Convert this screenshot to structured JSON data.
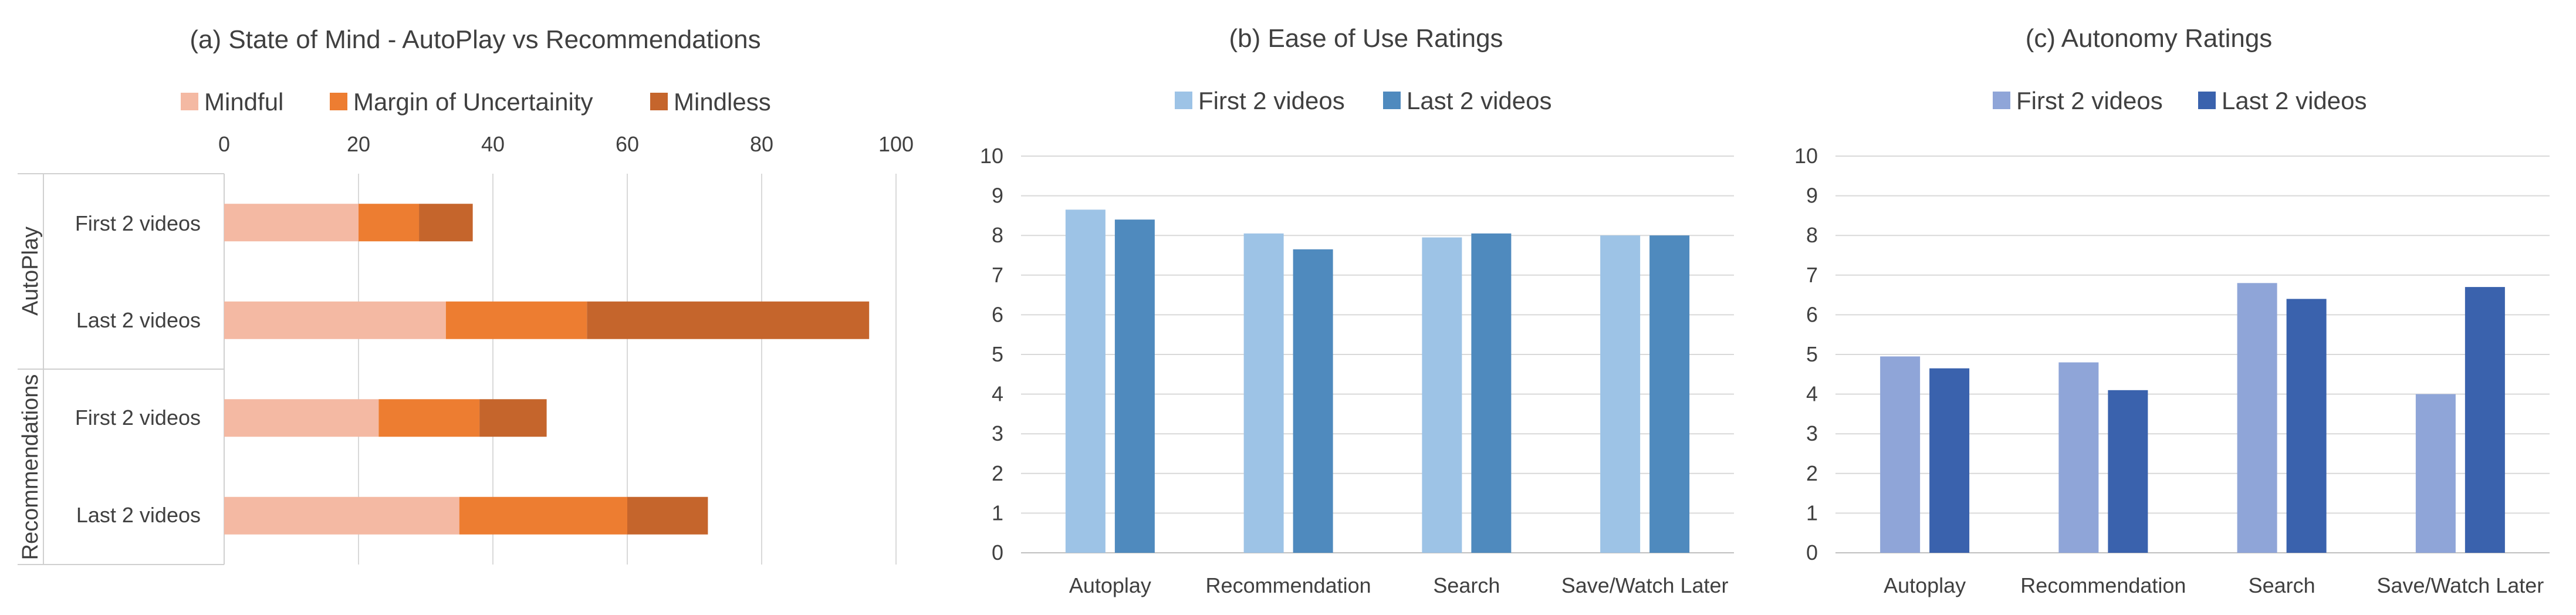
{
  "chart_data": [
    {
      "type": "bar",
      "orientation": "horizontal",
      "stacked": true,
      "title": "(a) State of Mind - AutoPlay vs Recommendations",
      "groups": [
        {
          "label": "AutoPlay",
          "categories": [
            "First 2 videos",
            "Last 2 videos"
          ]
        },
        {
          "label": "Recommendations",
          "categories": [
            "First 2 videos",
            "Last 2 videos"
          ]
        }
      ],
      "series": [
        {
          "name": "Mindful",
          "color": "#F4B9A3",
          "values": [
            20,
            33,
            23,
            35
          ]
        },
        {
          "name": "Margin of Uncertainity",
          "color": "#ED7D31",
          "values": [
            9,
            21,
            15,
            25
          ]
        },
        {
          "name": "Mindless",
          "color": "#C5652C",
          "values": [
            8,
            42,
            10,
            12
          ]
        }
      ],
      "xlim": [
        0,
        100
      ],
      "xticks": [
        "0",
        "20",
        "40",
        "60",
        "80",
        "100"
      ],
      "xaxis_position": "top",
      "grid": true,
      "legend": "top"
    },
    {
      "type": "bar",
      "title": "(b) Ease of Use Ratings",
      "categories": [
        "Autoplay",
        "Recommendation",
        "Search",
        "Save/Watch Later"
      ],
      "series": [
        {
          "name": "First 2 videos",
          "color": "#9DC3E6",
          "values": [
            8.65,
            8.05,
            7.95,
            8.0
          ]
        },
        {
          "name": "Last 2 videos",
          "color": "#4F8ABE",
          "values": [
            8.4,
            7.65,
            8.05,
            8.0
          ]
        }
      ],
      "ylim": [
        0,
        10
      ],
      "yticks": [
        "0",
        "1",
        "2",
        "3",
        "4",
        "5",
        "6",
        "7",
        "8",
        "9",
        "10"
      ],
      "grid": true,
      "legend": "top"
    },
    {
      "type": "bar",
      "title": "(c) Autonomy Ratings",
      "categories": [
        "Autoplay",
        "Recommendation",
        "Search",
        "Save/Watch Later"
      ],
      "series": [
        {
          "name": "First 2 videos",
          "color": "#8FA5D8",
          "values": [
            4.95,
            4.8,
            6.8,
            4.0
          ]
        },
        {
          "name": "Last 2 videos",
          "color": "#3A62AD",
          "values": [
            4.65,
            4.1,
            6.4,
            6.7
          ]
        }
      ],
      "ylim": [
        0,
        10
      ],
      "yticks": [
        "0",
        "1",
        "2",
        "3",
        "4",
        "5",
        "6",
        "7",
        "8",
        "9",
        "10"
      ],
      "grid": true,
      "legend": "top"
    }
  ]
}
